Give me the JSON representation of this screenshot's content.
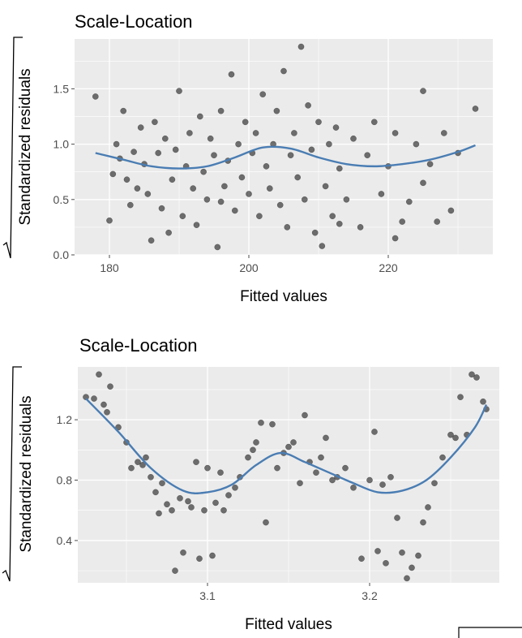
{
  "chart_data": [
    {
      "type": "scatter",
      "title": "Scale-Location",
      "xlabel": "Fitted values",
      "ylabel": "Standardized residuals",
      "xlim": [
        175,
        235
      ],
      "ylim": [
        0,
        1.95
      ],
      "xticks": [
        180,
        200,
        220
      ],
      "yticks": [
        0.0,
        0.5,
        1.0,
        1.5
      ],
      "xtick_labels": [
        "180",
        "200",
        "220"
      ],
      "ytick_labels": [
        "0.0",
        "0.5",
        "1.0",
        "1.5"
      ],
      "grid": true,
      "series": [
        {
          "points": [
            [
              178,
              1.43
            ],
            [
              180,
              0.31
            ],
            [
              180.5,
              0.73
            ],
            [
              181,
              1.0
            ],
            [
              181.5,
              0.87
            ],
            [
              182,
              1.3
            ],
            [
              182.5,
              0.68
            ],
            [
              183,
              0.45
            ],
            [
              183.5,
              0.93
            ],
            [
              184,
              0.6
            ],
            [
              184.5,
              1.15
            ],
            [
              185,
              0.82
            ],
            [
              185.5,
              0.55
            ],
            [
              186,
              0.13
            ],
            [
              186.5,
              1.2
            ],
            [
              187,
              0.92
            ],
            [
              187.5,
              0.42
            ],
            [
              188,
              1.05
            ],
            [
              188.5,
              0.2
            ],
            [
              189,
              0.68
            ],
            [
              189.5,
              0.95
            ],
            [
              190,
              1.48
            ],
            [
              190.5,
              0.35
            ],
            [
              191,
              0.8
            ],
            [
              191.5,
              1.1
            ],
            [
              192,
              0.6
            ],
            [
              192.5,
              0.27
            ],
            [
              193,
              1.25
            ],
            [
              193.5,
              0.75
            ],
            [
              194,
              0.5
            ],
            [
              194.5,
              1.05
            ],
            [
              195,
              0.9
            ],
            [
              195.5,
              0.07
            ],
            [
              196,
              1.3
            ],
            [
              196.5,
              0.62
            ],
            [
              197,
              0.85
            ],
            [
              197.5,
              1.63
            ],
            [
              198,
              0.4
            ],
            [
              198.5,
              1.0
            ],
            [
              199,
              0.7
            ],
            [
              199.5,
              1.2
            ],
            [
              200,
              0.55
            ],
            [
              200.5,
              0.92
            ],
            [
              201,
              1.1
            ],
            [
              201.5,
              0.35
            ],
            [
              202,
              1.45
            ],
            [
              202.5,
              0.8
            ],
            [
              203,
              0.6
            ],
            [
              203.5,
              1.0
            ],
            [
              204,
              1.3
            ],
            [
              204.5,
              0.45
            ],
            [
              205,
              1.66
            ],
            [
              205.5,
              0.25
            ],
            [
              206,
              0.9
            ],
            [
              206.5,
              1.1
            ],
            [
              207,
              0.7
            ],
            [
              207.5,
              1.88
            ],
            [
              208,
              0.5
            ],
            [
              208.5,
              1.35
            ],
            [
              209,
              0.95
            ],
            [
              209.5,
              0.2
            ],
            [
              210,
              1.2
            ],
            [
              210.5,
              0.08
            ],
            [
              211,
              0.62
            ],
            [
              211.5,
              1.0
            ],
            [
              212,
              0.35
            ],
            [
              212.5,
              1.15
            ],
            [
              213,
              0.78
            ],
            [
              214,
              0.5
            ],
            [
              215,
              1.05
            ],
            [
              216,
              0.25
            ],
            [
              217,
              0.9
            ],
            [
              218,
              1.2
            ],
            [
              219,
              0.55
            ],
            [
              220,
              0.8
            ],
            [
              221,
              1.1
            ],
            [
              222,
              0.3
            ],
            [
              223,
              0.48
            ],
            [
              224,
              1.0
            ],
            [
              225,
              0.65
            ],
            [
              226,
              0.82
            ],
            [
              227,
              0.3
            ],
            [
              228,
              1.1
            ],
            [
              229,
              0.4
            ],
            [
              230,
              0.92
            ],
            [
              232.5,
              1.32
            ],
            [
              225,
              1.48
            ],
            [
              213,
              0.28
            ],
            [
              221,
              0.15
            ],
            [
              196,
              0.48
            ]
          ]
        },
        {
          "type": "line",
          "smooth": true,
          "x": [
            178,
            182,
            186,
            190,
            194,
            198,
            202,
            206,
            210,
            214,
            218,
            222,
            226,
            230,
            232.5
          ],
          "y": [
            0.92,
            0.86,
            0.8,
            0.78,
            0.8,
            0.88,
            0.97,
            0.96,
            0.88,
            0.82,
            0.8,
            0.82,
            0.86,
            0.93,
            0.99
          ]
        }
      ]
    },
    {
      "type": "scatter",
      "title": "Scale-Location",
      "xlabel": "Fitted values",
      "ylabel": "Standardized residuals",
      "xlim": [
        3.02,
        3.28
      ],
      "ylim": [
        0.12,
        1.55
      ],
      "xticks": [
        3.1,
        3.2
      ],
      "yticks": [
        0.4,
        0.8,
        1.2
      ],
      "xtick_labels": [
        "3.1",
        "3.2"
      ],
      "ytick_labels": [
        "0.4",
        "0.8",
        "1.2"
      ],
      "grid": true,
      "series": [
        {
          "points": [
            [
              3.025,
              1.35
            ],
            [
              3.03,
              1.34
            ],
            [
              3.033,
              1.5
            ],
            [
              3.036,
              1.3
            ],
            [
              3.038,
              1.25
            ],
            [
              3.04,
              1.42
            ],
            [
              3.045,
              1.15
            ],
            [
              3.05,
              1.05
            ],
            [
              3.053,
              0.88
            ],
            [
              3.057,
              0.92
            ],
            [
              3.06,
              0.9
            ],
            [
              3.062,
              0.95
            ],
            [
              3.065,
              0.82
            ],
            [
              3.068,
              0.72
            ],
            [
              3.07,
              0.58
            ],
            [
              3.072,
              0.78
            ],
            [
              3.075,
              0.64
            ],
            [
              3.078,
              0.6
            ],
            [
              3.08,
              0.2
            ],
            [
              3.083,
              0.68
            ],
            [
              3.085,
              0.32
            ],
            [
              3.088,
              0.66
            ],
            [
              3.09,
              0.62
            ],
            [
              3.093,
              0.92
            ],
            [
              3.095,
              0.28
            ],
            [
              3.098,
              0.6
            ],
            [
              3.1,
              0.88
            ],
            [
              3.103,
              0.3
            ],
            [
              3.105,
              0.65
            ],
            [
              3.108,
              0.85
            ],
            [
              3.11,
              0.6
            ],
            [
              3.113,
              0.7
            ],
            [
              3.117,
              0.75
            ],
            [
              3.12,
              0.82
            ],
            [
              3.125,
              0.95
            ],
            [
              3.128,
              1.0
            ],
            [
              3.13,
              1.05
            ],
            [
              3.133,
              1.18
            ],
            [
              3.136,
              0.52
            ],
            [
              3.14,
              1.17
            ],
            [
              3.143,
              0.88
            ],
            [
              3.147,
              0.98
            ],
            [
              3.15,
              1.02
            ],
            [
              3.153,
              1.05
            ],
            [
              3.157,
              0.78
            ],
            [
              3.16,
              1.23
            ],
            [
              3.163,
              0.92
            ],
            [
              3.167,
              0.85
            ],
            [
              3.17,
              0.95
            ],
            [
              3.173,
              1.08
            ],
            [
              3.177,
              0.8
            ],
            [
              3.18,
              0.82
            ],
            [
              3.185,
              0.88
            ],
            [
              3.19,
              0.75
            ],
            [
              3.195,
              0.28
            ],
            [
              3.2,
              0.8
            ],
            [
              3.203,
              1.12
            ],
            [
              3.205,
              0.33
            ],
            [
              3.208,
              0.77
            ],
            [
              3.21,
              0.25
            ],
            [
              3.213,
              0.82
            ],
            [
              3.217,
              0.55
            ],
            [
              3.22,
              0.32
            ],
            [
              3.223,
              0.15
            ],
            [
              3.226,
              0.22
            ],
            [
              3.23,
              0.3
            ],
            [
              3.233,
              0.52
            ],
            [
              3.236,
              0.62
            ],
            [
              3.24,
              0.78
            ],
            [
              3.245,
              0.95
            ],
            [
              3.25,
              1.1
            ],
            [
              3.253,
              1.08
            ],
            [
              3.256,
              1.35
            ],
            [
              3.26,
              1.1
            ],
            [
              3.263,
              1.5
            ],
            [
              3.266,
              1.48
            ],
            [
              3.27,
              1.32
            ],
            [
              3.272,
              1.27
            ]
          ]
        },
        {
          "type": "line",
          "smooth": true,
          "x": [
            3.025,
            3.045,
            3.065,
            3.085,
            3.1,
            3.115,
            3.13,
            3.145,
            3.16,
            3.175,
            3.19,
            3.205,
            3.22,
            3.235,
            3.25,
            3.265,
            3.272
          ],
          "y": [
            1.34,
            1.12,
            0.88,
            0.73,
            0.72,
            0.77,
            0.9,
            0.98,
            0.92,
            0.85,
            0.78,
            0.72,
            0.73,
            0.8,
            0.95,
            1.15,
            1.3
          ]
        }
      ]
    }
  ]
}
